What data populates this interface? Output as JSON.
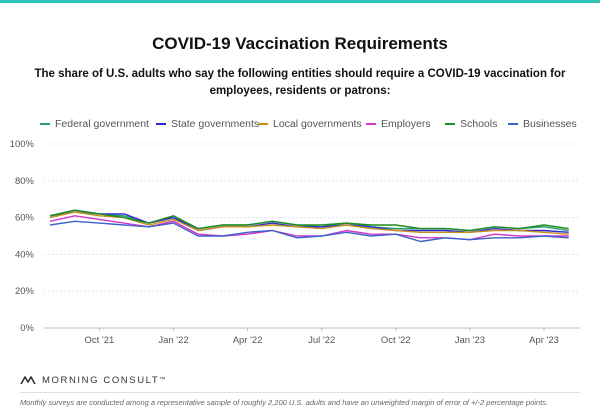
{
  "title": "COVID-19 Vaccination Requirements",
  "subtitle": "The share of U.S. adults who say the following entities should require a COVID-19 vaccination for employees, residents or patrons:",
  "brand": {
    "name": "MORNING CONSULT",
    "tm": "™"
  },
  "footnote": "Monthly surveys are conducted among a representative sample of roughly 2,200 U.S. adults and have an unweighted margin of error of +/-2 percentage points.",
  "colors": {
    "accent_bar": "#2ec4b6",
    "grid": "#e4e4e4",
    "axis": "#bdbdbd"
  },
  "chart_data": {
    "type": "line",
    "x": [
      "Aug '21",
      "Sep '21",
      "Oct '21",
      "Nov '21",
      "Dec '21",
      "Jan '22",
      "Feb '22",
      "Mar '22",
      "Apr '22",
      "May '22",
      "Jun '22",
      "Jul '22",
      "Aug '22",
      "Sep '22",
      "Oct '22",
      "Nov '22",
      "Dec '22",
      "Jan '23",
      "Feb '23",
      "Mar '23",
      "Apr '23",
      "May '23"
    ],
    "x_tick_labels": [
      "Oct '21",
      "Jan '22",
      "Apr '22",
      "Jul '22",
      "Oct '22",
      "Jan '23",
      "Apr '23"
    ],
    "ylim": [
      0,
      100
    ],
    "y_ticks": [
      0,
      20,
      40,
      60,
      80,
      100
    ],
    "y_tick_labels": [
      "0%",
      "20%",
      "40%",
      "60%",
      "80%",
      "100%"
    ],
    "grid": true,
    "legend_position": "top",
    "series": [
      {
        "name": "Federal government",
        "color": "#2a9d6f",
        "values": [
          61,
          63,
          62,
          61,
          57,
          60,
          54,
          56,
          56,
          58,
          56,
          55,
          57,
          55,
          54,
          54,
          54,
          53,
          55,
          54,
          55,
          53
        ]
      },
      {
        "name": "State governments",
        "color": "#2b2bd6",
        "values": [
          61,
          64,
          62,
          62,
          57,
          60,
          53,
          55,
          55,
          57,
          55,
          55,
          56,
          55,
          53,
          53,
          53,
          52,
          54,
          53,
          53,
          52
        ]
      },
      {
        "name": "Local governments",
        "color": "#c8901e",
        "values": [
          60,
          63,
          61,
          60,
          56,
          59,
          53,
          55,
          55,
          56,
          55,
          54,
          56,
          54,
          53,
          52,
          52,
          52,
          53,
          53,
          52,
          51
        ]
      },
      {
        "name": "Employers",
        "color": "#d534c8",
        "values": [
          58,
          61,
          59,
          57,
          55,
          58,
          51,
          50,
          51,
          53,
          50,
          50,
          53,
          51,
          51,
          49,
          49,
          48,
          51,
          50,
          50,
          50
        ]
      },
      {
        "name": "Schools",
        "color": "#1f8a1f",
        "values": [
          61,
          64,
          62,
          60,
          57,
          61,
          54,
          56,
          56,
          58,
          56,
          56,
          57,
          56,
          56,
          54,
          54,
          53,
          55,
          54,
          56,
          54
        ]
      },
      {
        "name": "Businesses",
        "color": "#3a63c9",
        "values": [
          56,
          58,
          57,
          56,
          55,
          57,
          50,
          50,
          52,
          53,
          49,
          50,
          52,
          50,
          51,
          47,
          49,
          48,
          49,
          49,
          50,
          49
        ]
      }
    ]
  }
}
